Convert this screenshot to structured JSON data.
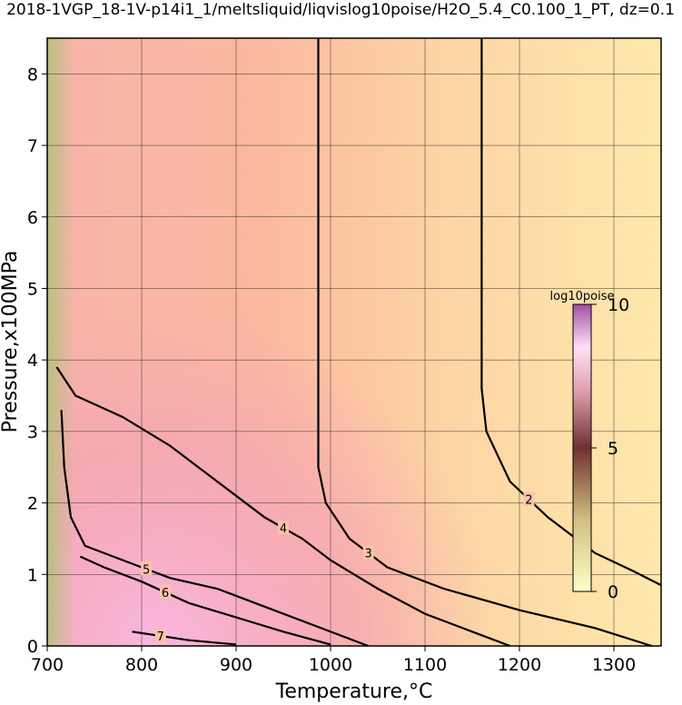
{
  "chart_data": {
    "type": "contour",
    "title": "2018-1VGP_18-1V-p14i1_1/meltsliquid/liqvislog10poise/H2O_5.4_C0.100_1_PT, dz=0.1",
    "x_label": "Temperature,°C",
    "y_label": "Pressure,x100MPa",
    "xlim": [
      700,
      1350
    ],
    "ylim": [
      0,
      8.5
    ],
    "xticks": [
      700,
      800,
      900,
      1000,
      1100,
      1200,
      1300
    ],
    "yticks": [
      0,
      1,
      2,
      3,
      4,
      5,
      6,
      7,
      8
    ],
    "grid": true,
    "contours": [
      {
        "level": 2,
        "x": [
          1160,
          1160,
          1165,
          1190,
          1230,
          1280,
          1320,
          1350
        ],
        "y": [
          8.5,
          3.6,
          3.0,
          2.3,
          1.8,
          1.3,
          1.05,
          0.85
        ]
      },
      {
        "level": 3,
        "x": [
          987,
          987,
          995,
          1020,
          1060,
          1120,
          1200,
          1280,
          1340
        ],
        "y": [
          8.5,
          2.5,
          2.0,
          1.5,
          1.1,
          0.8,
          0.5,
          0.25,
          0.0
        ]
      },
      {
        "level": 4,
        "x": [
          710,
          730,
          780,
          830,
          880,
          930,
          970,
          1000,
          1050,
          1100,
          1150,
          1190
        ],
        "y": [
          3.9,
          3.5,
          3.2,
          2.8,
          2.3,
          1.8,
          1.5,
          1.2,
          0.8,
          0.45,
          0.2,
          0
        ]
      },
      {
        "level": 5,
        "x": [
          715,
          718,
          725,
          740,
          780,
          830,
          880,
          930,
          980,
          1030,
          1040
        ],
        "y": [
          3.3,
          2.5,
          1.8,
          1.4,
          1.2,
          0.95,
          0.8,
          0.55,
          0.3,
          0.05,
          0
        ]
      },
      {
        "level": 6,
        "x": [
          735,
          760,
          800,
          850,
          900,
          950,
          1000
        ],
        "y": [
          1.25,
          1.1,
          0.9,
          0.6,
          0.4,
          0.2,
          0.02
        ]
      },
      {
        "level": 7,
        "x": [
          790,
          850,
          900
        ],
        "y": [
          0.2,
          0.08,
          0.02
        ]
      }
    ],
    "colorbar": {
      "label": "log10poise",
      "clim": [
        0,
        10
      ],
      "ticks": [
        0,
        5,
        10
      ]
    }
  }
}
